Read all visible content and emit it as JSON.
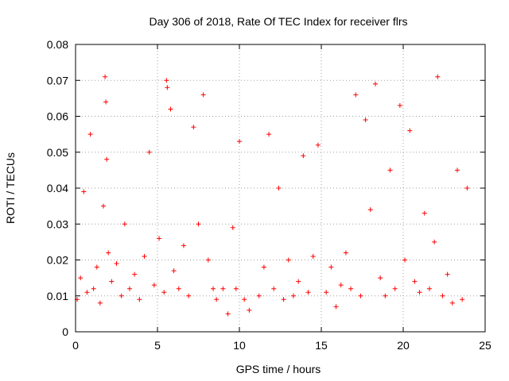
{
  "chart_data": {
    "type": "scatter",
    "title": "Day 306 of 2018, Rate Of TEC Index for receiver flrs",
    "xlabel": "GPS time / hours",
    "ylabel": "ROTI / TECUs",
    "xlim": [
      0,
      25
    ],
    "ylim": [
      0,
      0.08
    ],
    "x_ticks": [
      0,
      5,
      10,
      15,
      20,
      25
    ],
    "x_tick_labels": [
      "0",
      "5",
      "10",
      "15",
      "20",
      "25"
    ],
    "y_ticks": [
      0,
      0.01,
      0.02,
      0.03,
      0.04,
      0.05,
      0.06,
      0.07,
      0.08
    ],
    "y_tick_labels": [
      "0",
      "0.01",
      "0.02",
      "0.03",
      "0.04",
      "0.05",
      "0.06",
      "0.07",
      "0.08"
    ],
    "grid": true,
    "marker": "+",
    "color": "#ff0000",
    "series": [
      {
        "name": "",
        "x": [
          0.1,
          0.3,
          0.5,
          0.7,
          0.9,
          1.1,
          1.3,
          1.5,
          1.7,
          1.8,
          1.85,
          1.9,
          2.0,
          2.2,
          2.5,
          2.8,
          3.0,
          3.3,
          3.6,
          3.9,
          4.2,
          4.5,
          4.8,
          5.1,
          5.4,
          5.55,
          5.6,
          5.8,
          6.0,
          6.3,
          6.6,
          6.9,
          7.2,
          7.5,
          7.8,
          8.1,
          8.4,
          8.6,
          9.0,
          9.3,
          9.6,
          9.8,
          10.0,
          10.3,
          10.6,
          11.2,
          11.5,
          11.8,
          12.1,
          12.4,
          12.7,
          13.0,
          13.3,
          13.6,
          13.9,
          14.2,
          14.5,
          14.8,
          15.3,
          15.6,
          15.9,
          16.2,
          16.5,
          16.8,
          17.1,
          17.4,
          17.7,
          18.0,
          18.3,
          18.6,
          18.9,
          19.2,
          19.5,
          19.8,
          20.1,
          20.4,
          20.7,
          21.0,
          21.3,
          21.6,
          21.9,
          22.1,
          22.4,
          22.7,
          23.0,
          23.3,
          23.6,
          23.9
        ],
        "y": [
          0.009,
          0.015,
          0.039,
          0.011,
          0.055,
          0.012,
          0.018,
          0.008,
          0.035,
          0.071,
          0.064,
          0.048,
          0.022,
          0.014,
          0.019,
          0.01,
          0.03,
          0.012,
          0.016,
          0.009,
          0.021,
          0.05,
          0.013,
          0.026,
          0.011,
          0.07,
          0.068,
          0.062,
          0.017,
          0.012,
          0.024,
          0.01,
          0.057,
          0.03,
          0.066,
          0.02,
          0.012,
          0.009,
          0.012,
          0.005,
          0.029,
          0.012,
          0.053,
          0.009,
          0.006,
          0.01,
          0.018,
          0.055,
          0.012,
          0.04,
          0.009,
          0.02,
          0.01,
          0.014,
          0.049,
          0.011,
          0.021,
          0.052,
          0.011,
          0.018,
          0.007,
          0.013,
          0.022,
          0.012,
          0.066,
          0.01,
          0.059,
          0.034,
          0.069,
          0.015,
          0.01,
          0.045,
          0.012,
          0.063,
          0.02,
          0.056,
          0.014,
          0.011,
          0.033,
          0.012,
          0.025,
          0.071,
          0.01,
          0.016,
          0.008,
          0.045,
          0.009,
          0.04
        ]
      }
    ]
  }
}
